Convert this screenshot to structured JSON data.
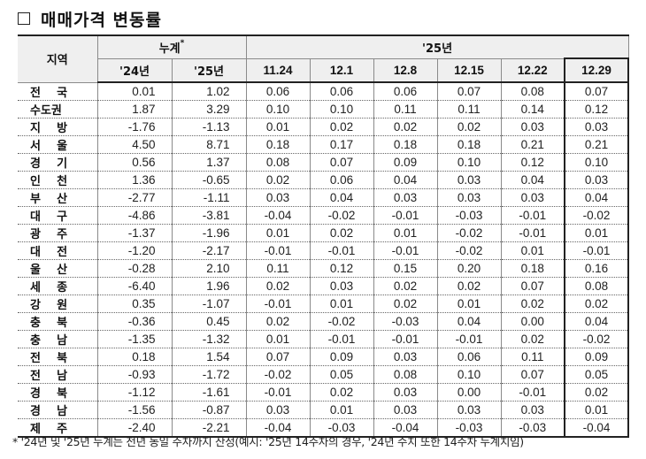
{
  "title": "매매가격 변동률",
  "table": {
    "header": {
      "region_label": "지역",
      "cumulative_label": "누계",
      "cumulative_mark": "*",
      "year_group_label": "'25년",
      "cumulative_cols": [
        "'24년",
        "'25년"
      ],
      "weekly_cols": [
        "11.24",
        "12.1",
        "12.8",
        "12.15",
        "12.22",
        "12.29"
      ]
    },
    "rows": [
      {
        "region": "전    국",
        "cum24": "0.01",
        "cum25": "1.02",
        "w": [
          "0.06",
          "0.06",
          "0.06",
          "0.07",
          "0.08",
          "0.07"
        ]
      },
      {
        "region": "수도권",
        "cum24": "1.87",
        "cum25": "3.29",
        "w": [
          "0.10",
          "0.10",
          "0.11",
          "0.11",
          "0.14",
          "0.12"
        ]
      },
      {
        "region": "지    방",
        "cum24": "-1.76",
        "cum25": "-1.13",
        "w": [
          "0.01",
          "0.02",
          "0.02",
          "0.02",
          "0.03",
          "0.03"
        ]
      },
      {
        "region": "서    울",
        "cum24": "4.50",
        "cum25": "8.71",
        "w": [
          "0.18",
          "0.17",
          "0.18",
          "0.18",
          "0.21",
          "0.21"
        ]
      },
      {
        "region": "경    기",
        "cum24": "0.56",
        "cum25": "1.37",
        "w": [
          "0.08",
          "0.07",
          "0.09",
          "0.10",
          "0.12",
          "0.10"
        ]
      },
      {
        "region": "인    천",
        "cum24": "1.36",
        "cum25": "-0.65",
        "w": [
          "0.02",
          "0.06",
          "0.04",
          "0.03",
          "0.04",
          "0.03"
        ]
      },
      {
        "region": "부    산",
        "cum24": "-2.77",
        "cum25": "-1.11",
        "w": [
          "0.03",
          "0.04",
          "0.03",
          "0.03",
          "0.03",
          "0.04"
        ]
      },
      {
        "region": "대    구",
        "cum24": "-4.86",
        "cum25": "-3.81",
        "w": [
          "-0.04",
          "-0.02",
          "-0.01",
          "-0.03",
          "-0.01",
          "-0.02"
        ]
      },
      {
        "region": "광    주",
        "cum24": "-1.37",
        "cum25": "-1.96",
        "w": [
          "0.01",
          "0.02",
          "0.01",
          "-0.02",
          "-0.01",
          "0.01"
        ]
      },
      {
        "region": "대    전",
        "cum24": "-1.20",
        "cum25": "-2.17",
        "w": [
          "-0.01",
          "-0.01",
          "-0.01",
          "-0.02",
          "0.01",
          "-0.01"
        ]
      },
      {
        "region": "울    산",
        "cum24": "-0.28",
        "cum25": "2.10",
        "w": [
          "0.11",
          "0.12",
          "0.15",
          "0.20",
          "0.18",
          "0.16"
        ]
      },
      {
        "region": "세    종",
        "cum24": "-6.40",
        "cum25": "1.96",
        "w": [
          "0.02",
          "0.03",
          "0.02",
          "0.02",
          "0.07",
          "0.08"
        ]
      },
      {
        "region": "강    원",
        "cum24": "0.35",
        "cum25": "-1.07",
        "w": [
          "-0.01",
          "0.01",
          "0.02",
          "0.01",
          "0.02",
          "0.02"
        ]
      },
      {
        "region": "충    북",
        "cum24": "-0.36",
        "cum25": "0.45",
        "w": [
          "0.02",
          "-0.02",
          "-0.03",
          "0.04",
          "0.00",
          "0.04"
        ]
      },
      {
        "region": "충    남",
        "cum24": "-1.35",
        "cum25": "-1.32",
        "w": [
          "0.01",
          "-0.01",
          "-0.01",
          "-0.01",
          "0.02",
          "-0.02"
        ]
      },
      {
        "region": "전    북",
        "cum24": "0.18",
        "cum25": "1.54",
        "w": [
          "0.07",
          "0.09",
          "0.03",
          "0.06",
          "0.11",
          "0.09"
        ]
      },
      {
        "region": "전    남",
        "cum24": "-0.93",
        "cum25": "-1.72",
        "w": [
          "-0.02",
          "0.05",
          "0.08",
          "0.10",
          "0.07",
          "0.05"
        ]
      },
      {
        "region": "경    북",
        "cum24": "-1.12",
        "cum25": "-1.61",
        "w": [
          "-0.01",
          "0.02",
          "0.03",
          "0.00",
          "-0.01",
          "0.02"
        ]
      },
      {
        "region": "경    남",
        "cum24": "-1.56",
        "cum25": "-0.87",
        "w": [
          "0.03",
          "0.01",
          "0.03",
          "0.03",
          "0.03",
          "0.01"
        ]
      },
      {
        "region": "제    주",
        "cum24": "-2.40",
        "cum25": "-2.21",
        "w": [
          "-0.04",
          "-0.03",
          "-0.04",
          "-0.03",
          "-0.03",
          "-0.04"
        ]
      }
    ]
  },
  "footnote": "* '24년 및 '25년 누계는 전년 동일 주차까지 산정(예시: '25년 14주차의 경우, '24년 수치 또한 14주차 누계치임)"
}
